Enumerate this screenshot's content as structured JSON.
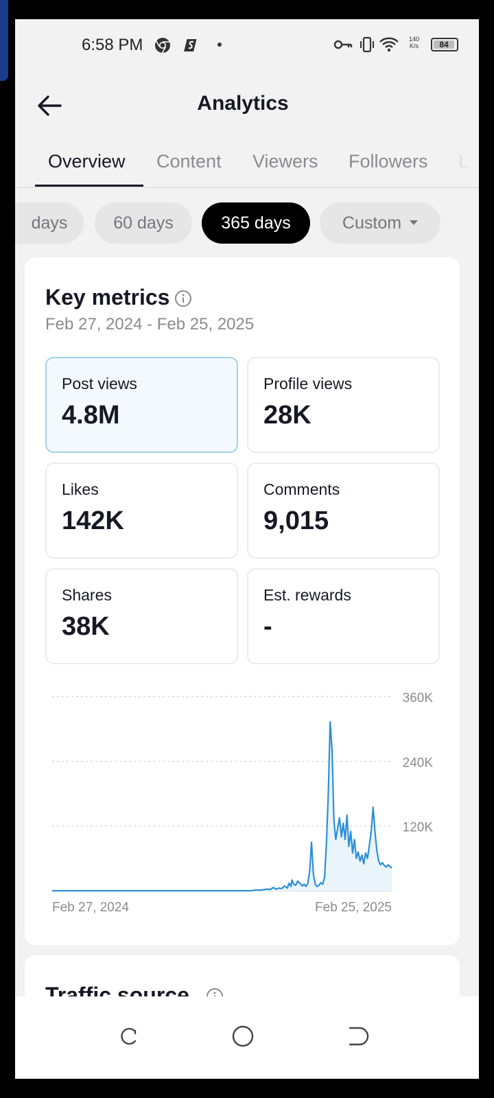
{
  "status_bar": {
    "time": "6:58 PM",
    "net_speed_top": "140",
    "net_speed_bottom": "K/s",
    "battery": "84",
    "icons": [
      "chrome-icon",
      "app-s-icon",
      "vpn-key-icon",
      "vibrate-icon",
      "wifi-icon",
      "battery-icon"
    ]
  },
  "header": {
    "title": "Analytics"
  },
  "tabs": [
    {
      "label": "Overview",
      "active": true
    },
    {
      "label": "Content",
      "active": false
    },
    {
      "label": "Viewers",
      "active": false
    },
    {
      "label": "Followers",
      "active": false
    },
    {
      "label": "L",
      "active": false
    }
  ],
  "periods": [
    {
      "label": "days",
      "selected": false
    },
    {
      "label": "60 days",
      "selected": false
    },
    {
      "label": "365 days",
      "selected": true
    },
    {
      "label": "Custom",
      "selected": false
    }
  ],
  "key_metrics": {
    "title": "Key metrics",
    "date_range": "Feb 27, 2024 - Feb 25, 2025",
    "metrics": [
      {
        "label": "Post views",
        "value": "4.8M",
        "selected": true
      },
      {
        "label": "Profile views",
        "value": "28K",
        "selected": false
      },
      {
        "label": "Likes",
        "value": "142K",
        "selected": false
      },
      {
        "label": "Comments",
        "value": "9,015",
        "selected": false
      },
      {
        "label": "Shares",
        "value": "38K",
        "selected": false
      },
      {
        "label": "Est. rewards",
        "value": "-",
        "selected": false
      }
    ]
  },
  "traffic_source": {
    "title": "Traffic source"
  },
  "colors": {
    "accent_line": "#2d8fd5",
    "selected_metric_border": "#9fd4e4",
    "selected_chip": "#000000"
  },
  "chart_data": {
    "type": "area",
    "x_start": "Feb 27, 2024",
    "x_end": "Feb 25, 2025",
    "x_tick_labels": [
      "Feb 27, 2024",
      "Feb 25, 2025"
    ],
    "y_tick_labels": [
      "360K",
      "240K",
      "120K"
    ],
    "ylim": [
      0,
      360000
    ],
    "grid": true,
    "x_days": [
      0,
      178,
      214,
      218,
      222,
      227,
      231,
      234,
      237,
      240,
      243,
      246,
      249,
      252,
      254,
      256,
      257,
      259,
      261,
      263,
      266,
      268,
      270,
      272,
      274,
      276,
      278,
      280,
      282,
      284,
      286,
      288,
      290,
      292,
      294,
      296,
      298,
      300,
      302,
      304,
      306,
      308,
      310,
      312,
      314,
      316,
      318,
      320,
      322,
      324,
      326,
      328,
      330,
      332,
      334,
      336,
      338,
      340,
      342,
      344,
      346,
      348,
      350,
      352,
      354,
      356,
      358,
      360,
      362,
      364
    ],
    "values": [
      0,
      0,
      0,
      1500,
      1000,
      2000,
      3000,
      2500,
      6000,
      3000,
      5000,
      4000,
      9000,
      5000,
      14000,
      8000,
      20000,
      12000,
      10000,
      18000,
      13000,
      9000,
      12000,
      8000,
      14000,
      35000,
      90000,
      30000,
      12000,
      8000,
      10000,
      15000,
      12000,
      25000,
      90000,
      180000,
      313000,
      260000,
      130000,
      95000,
      115000,
      135000,
      100000,
      125000,
      95000,
      140000,
      82000,
      110000,
      70000,
      95000,
      60000,
      72000,
      55000,
      66000,
      50000,
      70000,
      60000,
      85000,
      110000,
      155000,
      110000,
      75000,
      55000,
      48000,
      52000,
      47000,
      44000,
      48000,
      45000,
      42000
    ],
    "ytick_values": [
      360000,
      240000,
      120000,
      0
    ]
  }
}
